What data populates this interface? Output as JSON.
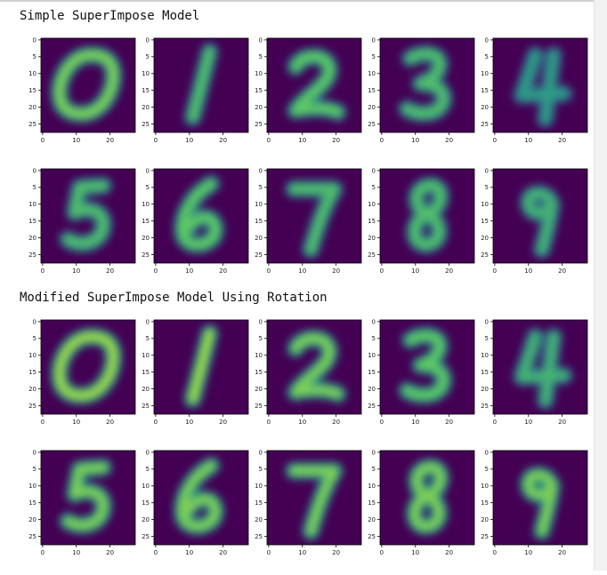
{
  "chart_data": [
    {
      "type": "heatmap",
      "title": "Simple SuperImpose Model",
      "image_shape": [
        28,
        28
      ],
      "colormap": "viridis",
      "x_ticks": [
        0,
        10,
        20
      ],
      "y_ticks": [
        0,
        5,
        10,
        15,
        20,
        25
      ],
      "xlim": [
        0,
        27
      ],
      "ylim": [
        27,
        0
      ],
      "grid": false,
      "panels": [
        {
          "digit": "0",
          "intensity": 0.8
        },
        {
          "digit": "1",
          "intensity": 0.7
        },
        {
          "digit": "2",
          "intensity": 0.75
        },
        {
          "digit": "3",
          "intensity": 0.7
        },
        {
          "digit": "4",
          "intensity": 0.55
        },
        {
          "digit": "5",
          "intensity": 0.7
        },
        {
          "digit": "6",
          "intensity": 0.75
        },
        {
          "digit": "7",
          "intensity": 0.7
        },
        {
          "digit": "8",
          "intensity": 0.7
        },
        {
          "digit": "9",
          "intensity": 0.65
        }
      ]
    },
    {
      "type": "heatmap",
      "title": "Modified SuperImpose Model Using Rotation",
      "image_shape": [
        28,
        28
      ],
      "colormap": "viridis",
      "x_ticks": [
        0,
        10,
        20
      ],
      "y_ticks": [
        0,
        5,
        10,
        15,
        20,
        25
      ],
      "xlim": [
        0,
        27
      ],
      "ylim": [
        27,
        0
      ],
      "grid": false,
      "panels": [
        {
          "digit": "0",
          "intensity": 0.85
        },
        {
          "digit": "1",
          "intensity": 0.85
        },
        {
          "digit": "2",
          "intensity": 0.8
        },
        {
          "digit": "3",
          "intensity": 0.75
        },
        {
          "digit": "4",
          "intensity": 0.65
        },
        {
          "digit": "5",
          "intensity": 0.8
        },
        {
          "digit": "6",
          "intensity": 0.8
        },
        {
          "digit": "7",
          "intensity": 0.8
        },
        {
          "digit": "8",
          "intensity": 0.8
        },
        {
          "digit": "9",
          "intensity": 0.8
        }
      ]
    }
  ],
  "colors": {
    "background": "#ffffff",
    "viridis_low": "#440154",
    "viridis_mid": "#21918c",
    "viridis_high": "#fde725",
    "axis": "#000000",
    "tick_text": "#222222"
  }
}
